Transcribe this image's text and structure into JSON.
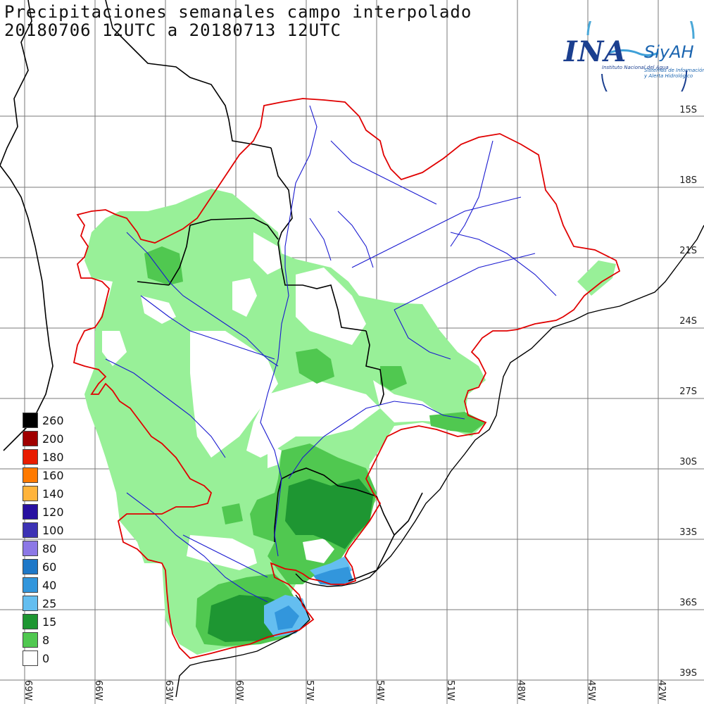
{
  "title": {
    "line1": "Precipitaciones semanales campo interpolado",
    "line2": "20180706 12UTC a 20180713 12UTC"
  },
  "logo": {
    "brand": "INA",
    "system": "SiyAH",
    "subtitle": "Instituto Nacional del Agua",
    "tagline": "Sistemas de Información y Alerta Hidrológico"
  },
  "lat_labels": [
    "15S",
    "18S",
    "21S",
    "24S",
    "27S",
    "30S",
    "33S",
    "36S",
    "39S"
  ],
  "lon_labels": [
    "69W",
    "66W",
    "63W",
    "60W",
    "57W",
    "54W",
    "51W",
    "48W",
    "45W",
    "42W"
  ],
  "legend": [
    {
      "value": "260",
      "color": "#000000"
    },
    {
      "value": "200",
      "color": "#a00000"
    },
    {
      "value": "180",
      "color": "#e81c00"
    },
    {
      "value": "160",
      "color": "#ff7a00"
    },
    {
      "value": "140",
      "color": "#ffb43c"
    },
    {
      "value": "120",
      "color": "#2810a0"
    },
    {
      "value": "100",
      "color": "#3c32b4"
    },
    {
      "value": "80",
      "color": "#8c78e6"
    },
    {
      "value": "60",
      "color": "#1e78c8"
    },
    {
      "value": "40",
      "color": "#3296dc"
    },
    {
      "value": "25",
      "color": "#64bef0"
    },
    {
      "value": "15",
      "color": "#1e9632"
    },
    {
      "value": "8",
      "color": "#50c850"
    },
    {
      "value": "0",
      "color": "#ffffff"
    }
  ],
  "colors": {
    "basin_border": "#e00000",
    "country_border": "#000000",
    "rivers": "#1a1ad0",
    "grid": "#7a7a7a",
    "precip_8": "#98f098",
    "precip_15": "#50c850",
    "precip_25": "#1e9632",
    "precip_40": "#64bef0",
    "precip_60": "#3296dc",
    "precip_80": "#1e78c8"
  }
}
